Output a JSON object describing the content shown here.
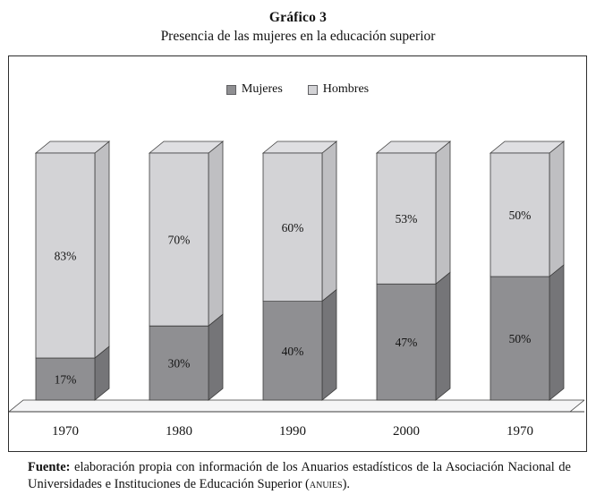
{
  "title": "Gráfico 3",
  "subtitle": "Presencia de las mujeres en la educación superior",
  "chart_data": {
    "type": "bar",
    "stacked": true,
    "style": "3d",
    "categories": [
      "1970",
      "1980",
      "1990",
      "2000",
      "1970"
    ],
    "series": [
      {
        "name": "Mujeres",
        "values": [
          17,
          30,
          40,
          47,
          50
        ],
        "color": "#8f8f92",
        "side_color": "#757578"
      },
      {
        "name": "Hombres",
        "values": [
          83,
          70,
          60,
          53,
          50
        ],
        "color": "#d3d3d6",
        "side_color": "#bfbfc2",
        "top_color": "#dfdfe2"
      }
    ],
    "value_suffix": "%",
    "ylim": [
      0,
      100
    ],
    "legend_position": "top-center",
    "grid": false,
    "floor_color": "#f5f5f6",
    "outline_color": "#3c3c3c",
    "label_color": "#141414"
  },
  "source": {
    "label": "Fuente:",
    "body": " elaboración propia con información de los Anuarios estadísticos de la Asociación Nacional de Universidades e Instituciones de Educación Superior (",
    "acronym": "ANUIES",
    "close": ")."
  }
}
